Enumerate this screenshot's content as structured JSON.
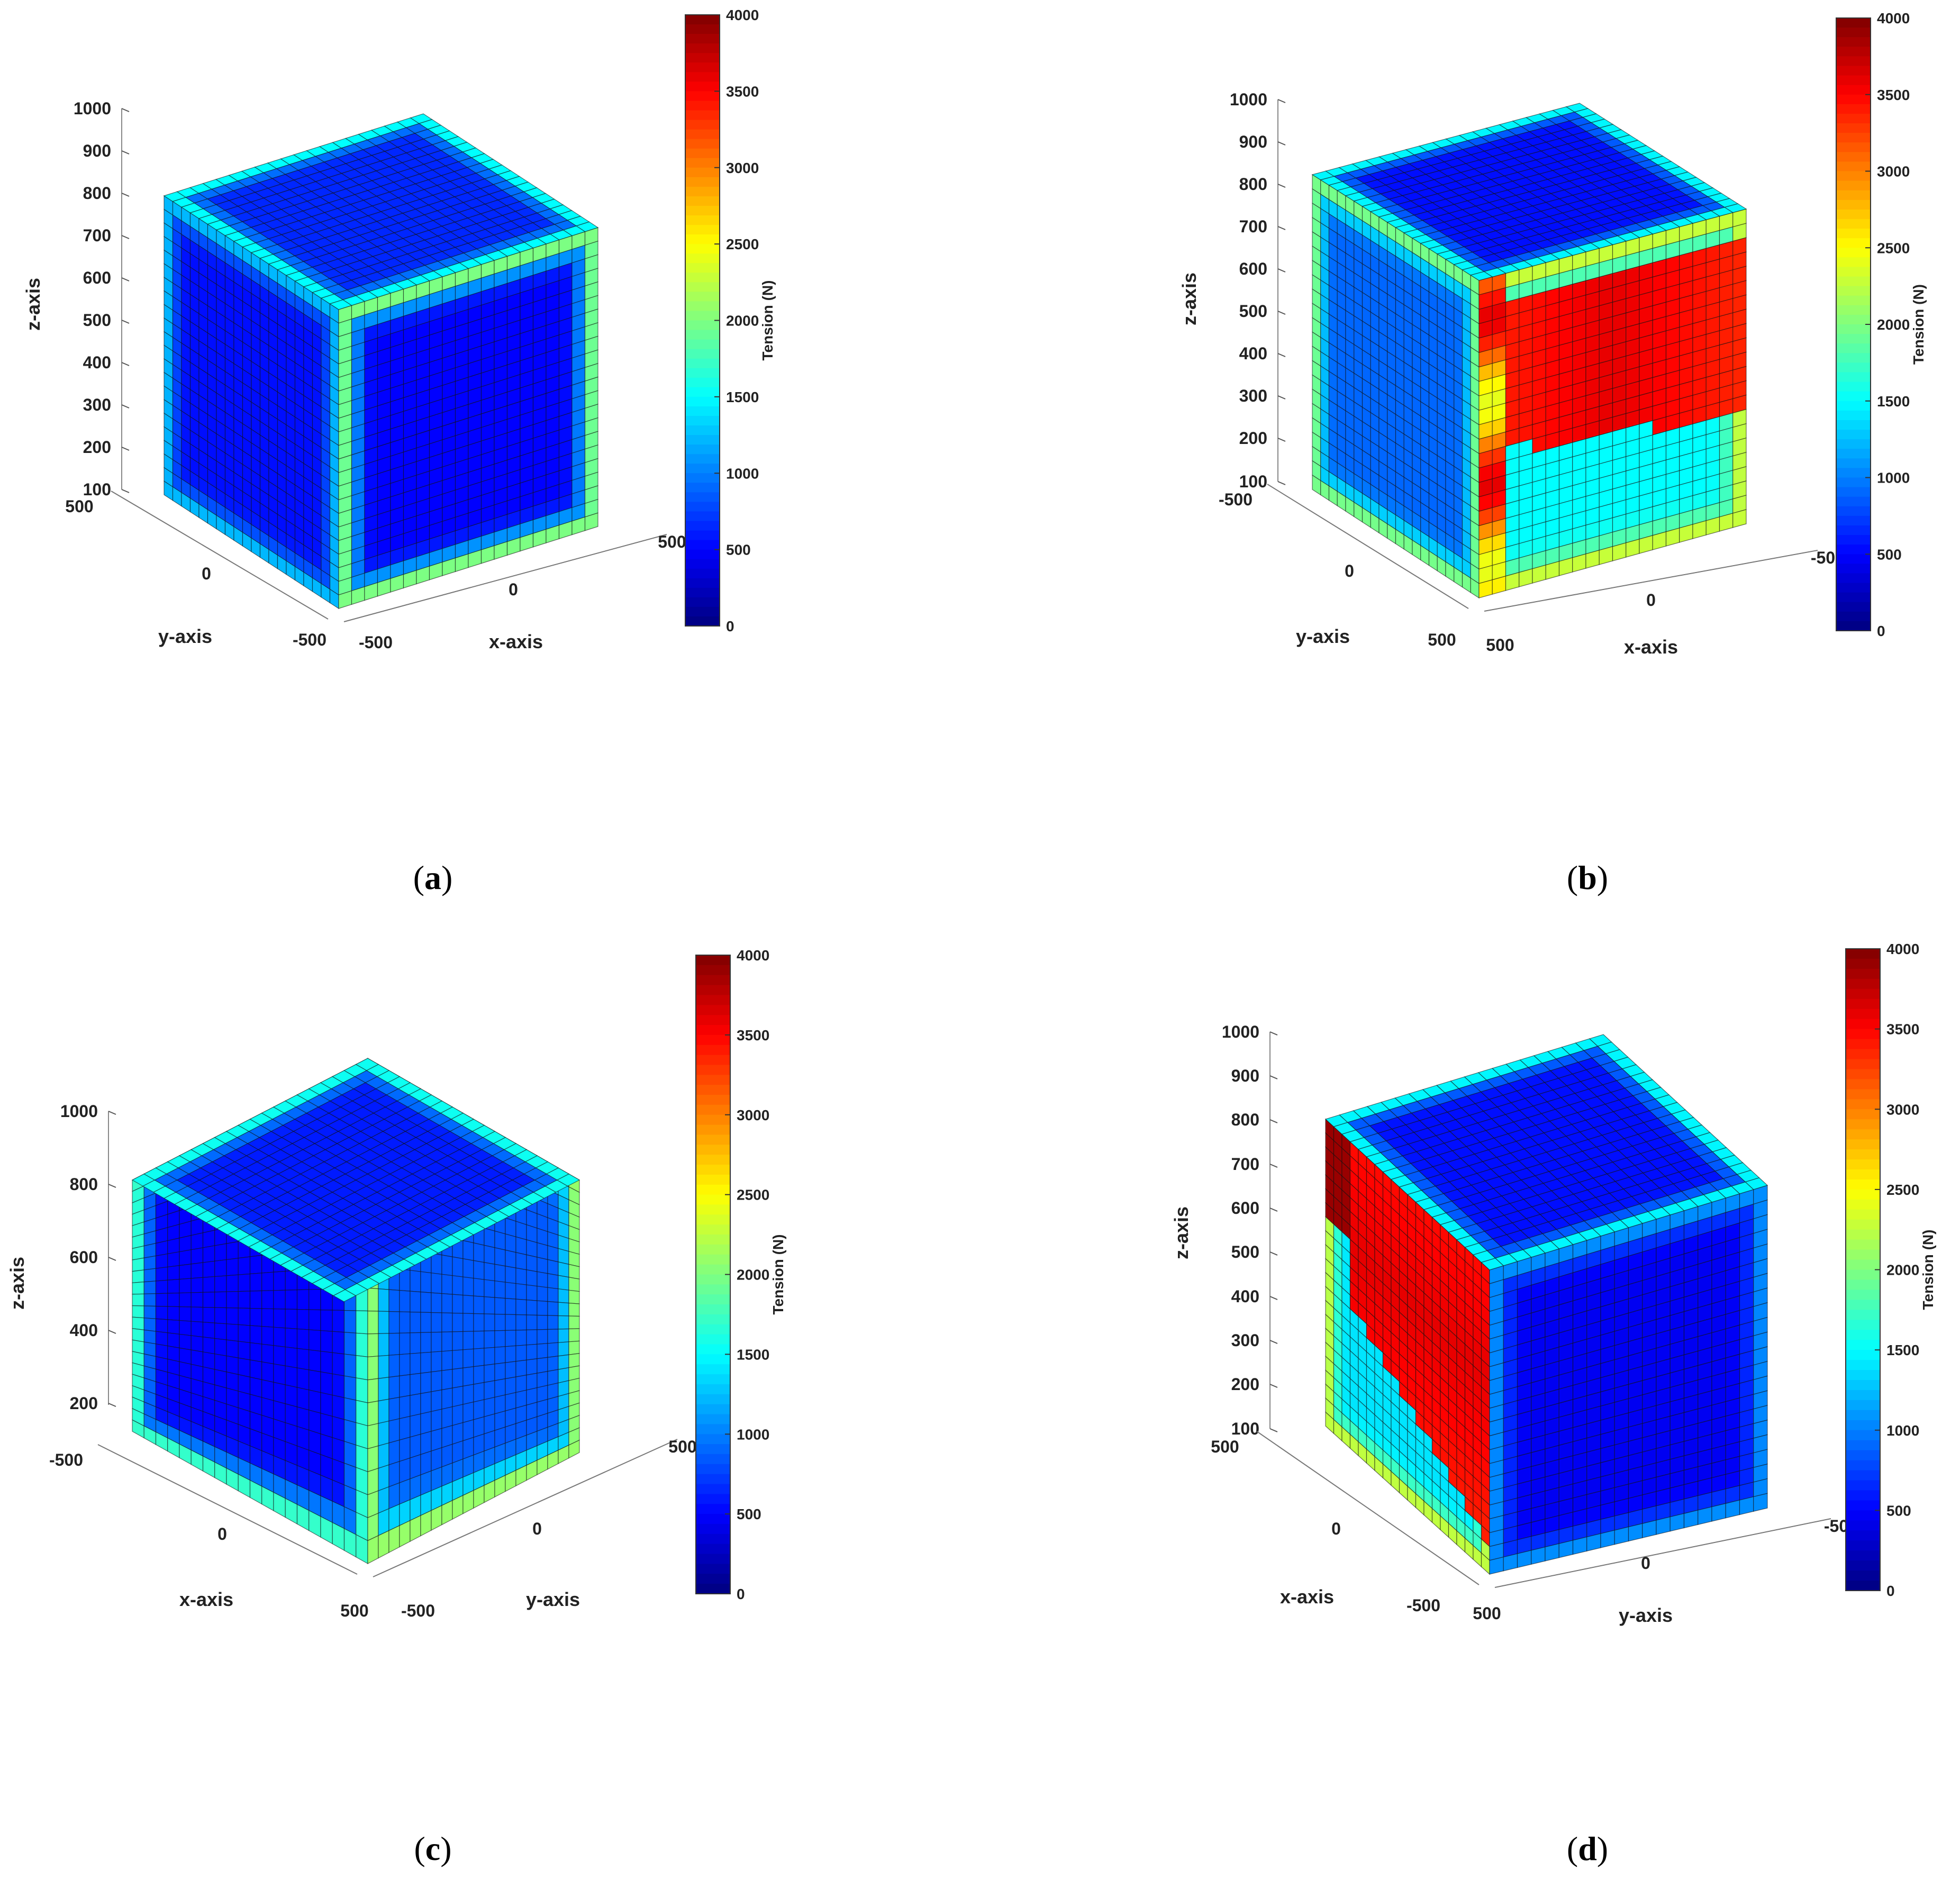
{
  "chart_data": [
    {
      "panel": "a",
      "type": "heatmap",
      "caption_letter": "a",
      "view": "x-axis front-right, y-axis front-left",
      "zlabel": "z-axis",
      "zticks": [
        "1000",
        "900",
        "800",
        "700",
        "600",
        "500",
        "400",
        "300",
        "200",
        "100"
      ],
      "left_axis_label": "y-axis",
      "left_axis_ticks": [
        "500",
        "0",
        "-500"
      ],
      "right_axis_label": "x-axis",
      "right_axis_ticks": [
        "-500",
        "0",
        "500"
      ],
      "colorbar": {
        "label": "Tension (N)",
        "ticks": [
          "4000",
          "3500",
          "3000",
          "2500",
          "2000",
          "1500",
          "1000",
          "500",
          "0"
        ],
        "range": [
          0,
          4000
        ]
      },
      "faces": {
        "top": {
          "base": 650,
          "edge_high": 1900
        },
        "left": {
          "base": 550,
          "edge_high": 1500
        },
        "right": {
          "base": 500,
          "edge_high": 2600
        }
      }
    },
    {
      "panel": "b",
      "type": "heatmap",
      "caption_letter": "b",
      "view": "x-axis front-right, y-axis front-left",
      "zlabel": "z-axis",
      "zticks": [
        "1000",
        "900",
        "800",
        "700",
        "600",
        "500",
        "400",
        "300",
        "200",
        "100"
      ],
      "left_axis_label": "y-axis",
      "left_axis_ticks": [
        "-500",
        "0",
        "500"
      ],
      "right_axis_label": "x-axis",
      "right_axis_ticks": [
        "500",
        "0",
        "-50"
      ],
      "colorbar": {
        "label": "Tension (N)",
        "ticks": [
          "4000",
          "3500",
          "3000",
          "2500",
          "2000",
          "1500",
          "1000",
          "500",
          "0"
        ],
        "range": [
          0,
          4000
        ]
      },
      "faces": {
        "top": {
          "base": 550,
          "edge_high": 1900
        },
        "left": {
          "base": 900,
          "edge_high": 2400
        },
        "right": {
          "base": 1500,
          "edge_high": 2600,
          "hot_region": 3600
        }
      }
    },
    {
      "panel": "c",
      "type": "heatmap",
      "caption_letter": "c",
      "view": "y-axis front-right, x-axis front-left",
      "zlabel": "z-axis",
      "zticks": [
        "1000",
        "800",
        "600",
        "400",
        "200"
      ],
      "left_axis_label": "x-axis",
      "left_axis_ticks": [
        "-500",
        "0",
        "500"
      ],
      "right_axis_label": "y-axis",
      "right_axis_ticks": [
        "-500",
        "0",
        "500"
      ],
      "colorbar": {
        "label": "Tension (N)",
        "ticks": [
          "4000",
          "3500",
          "3000",
          "2500",
          "2000",
          "1500",
          "1000",
          "500",
          "0"
        ],
        "range": [
          0,
          4000
        ]
      },
      "faces": {
        "top": {
          "base": 600,
          "edge_high": 2000
        },
        "left": {
          "base": 500,
          "edge_high": 2200
        },
        "right": {
          "base": 850,
          "edge_high": 2600
        }
      }
    },
    {
      "panel": "d",
      "type": "heatmap",
      "caption_letter": "d",
      "view": "y-axis front-right, x-axis front-left",
      "zlabel": "z-axis",
      "zticks": [
        "1000",
        "900",
        "800",
        "700",
        "600",
        "500",
        "400",
        "300",
        "200",
        "100"
      ],
      "left_axis_label": "x-axis",
      "left_axis_ticks": [
        "500",
        "0",
        "-500"
      ],
      "right_axis_label": "y-axis",
      "right_axis_ticks": [
        "500",
        "0",
        "-50"
      ],
      "colorbar": {
        "label": "Tension (N)",
        "ticks": [
          "4000",
          "3500",
          "3000",
          "2500",
          "2000",
          "1500",
          "1000",
          "500",
          "0"
        ],
        "range": [
          0,
          4000
        ]
      },
      "faces": {
        "top": {
          "base": 550,
          "edge_high": 1900
        },
        "left": {
          "base": 1400,
          "edge_high": 2600,
          "hot_region": 3600
        },
        "right": {
          "base": 450,
          "edge_high": 1300
        }
      }
    }
  ]
}
